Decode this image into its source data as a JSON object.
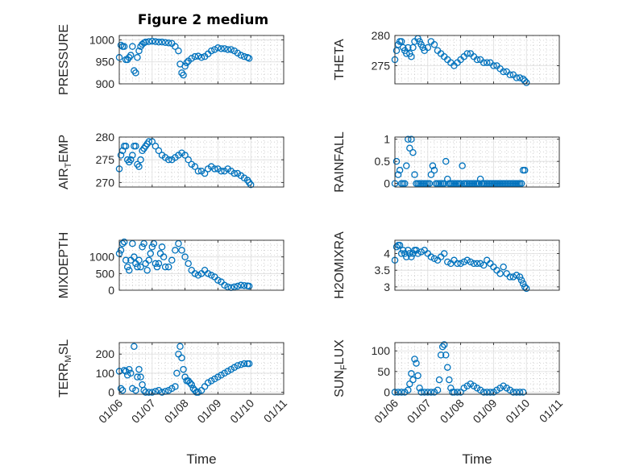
{
  "title": "Figure 2 medium",
  "marker_color": "#0072BD",
  "chart_data": [
    {
      "type": "scatter",
      "ylabel": {
        "main": "PRESSURE",
        "sub": "",
        "rest": ""
      },
      "ylim": [
        900,
        1010
      ],
      "yticks": [
        900,
        950,
        1000
      ],
      "xlim": [
        0,
        5
      ],
      "xticks": [
        "01/06",
        "01/07",
        "01/08",
        "01/09",
        "01/10",
        "01/11"
      ],
      "xlabel": "",
      "grid": true,
      "x": [
        0.0,
        0.05,
        0.1,
        0.15,
        0.2,
        0.25,
        0.3,
        0.35,
        0.4,
        0.45,
        0.5,
        0.55,
        0.6,
        0.65,
        0.7,
        0.75,
        0.8,
        0.9,
        1.0,
        1.1,
        1.2,
        1.3,
        1.4,
        1.5,
        1.6,
        1.7,
        1.8,
        1.85,
        1.9,
        1.95,
        2.0,
        2.05,
        2.1,
        2.2,
        2.3,
        2.4,
        2.5,
        2.6,
        2.7,
        2.8,
        2.9,
        3.0,
        3.1,
        3.2,
        3.3,
        3.4,
        3.5,
        3.6,
        3.7,
        3.8,
        3.9,
        3.95
      ],
      "y": [
        960,
        988,
        985,
        985,
        955,
        955,
        960,
        965,
        985,
        930,
        925,
        960,
        975,
        985,
        990,
        993,
        995,
        996,
        997,
        996,
        995,
        995,
        994,
        993,
        992,
        985,
        975,
        945,
        925,
        920,
        940,
        948,
        952,
        958,
        962,
        963,
        960,
        962,
        968,
        975,
        978,
        982,
        980,
        980,
        978,
        978,
        975,
        970,
        965,
        962,
        960,
        958
      ]
    },
    {
      "type": "scatter",
      "ylabel": {
        "main": "THETA",
        "sub": "",
        "rest": ""
      },
      "ylim": [
        272,
        280
      ],
      "yticks": [
        275,
        280
      ],
      "xlim": [
        0,
        5
      ],
      "xticks": [
        "01/06",
        "01/07",
        "01/08",
        "01/09",
        "01/10",
        "01/11"
      ],
      "xlabel": "",
      "grid": true,
      "x": [
        0.0,
        0.05,
        0.1,
        0.15,
        0.2,
        0.25,
        0.3,
        0.35,
        0.4,
        0.45,
        0.5,
        0.55,
        0.6,
        0.7,
        0.75,
        0.8,
        0.85,
        0.9,
        1.0,
        1.1,
        1.2,
        1.3,
        1.4,
        1.5,
        1.6,
        1.7,
        1.8,
        1.9,
        2.0,
        2.1,
        2.2,
        2.3,
        2.4,
        2.5,
        2.6,
        2.7,
        2.8,
        2.9,
        3.0,
        3.1,
        3.2,
        3.3,
        3.4,
        3.5,
        3.6,
        3.7,
        3.8,
        3.9,
        3.95,
        4.0
      ],
      "y": [
        276,
        277.5,
        278.5,
        279,
        279,
        278,
        277.5,
        277,
        278,
        277,
        276.5,
        278,
        279,
        279.5,
        279,
        278.5,
        278,
        277.5,
        278,
        279,
        278.5,
        277.5,
        277,
        276.5,
        276,
        275.5,
        275,
        275.5,
        276,
        276.5,
        277,
        277,
        276.5,
        276,
        276,
        275.5,
        275.5,
        275.5,
        275,
        275,
        274.5,
        274,
        274,
        273.5,
        273.5,
        273,
        273,
        272.8,
        272.5,
        272.2
      ]
    },
    {
      "type": "scatter",
      "ylabel": {
        "main": "AIR",
        "sub": "T",
        "rest": "EMP"
      },
      "ylim": [
        269,
        280
      ],
      "yticks": [
        270,
        275,
        280
      ],
      "xlim": [
        0,
        5
      ],
      "xticks": [
        "01/06",
        "01/07",
        "01/08",
        "01/09",
        "01/10",
        "01/11"
      ],
      "xlabel": "",
      "grid": true,
      "x": [
        0.0,
        0.05,
        0.1,
        0.15,
        0.2,
        0.25,
        0.3,
        0.35,
        0.4,
        0.45,
        0.5,
        0.55,
        0.6,
        0.65,
        0.7,
        0.75,
        0.8,
        0.85,
        0.9,
        1.0,
        1.1,
        1.2,
        1.3,
        1.4,
        1.5,
        1.6,
        1.7,
        1.8,
        1.9,
        2.0,
        2.1,
        2.2,
        2.3,
        2.4,
        2.5,
        2.6,
        2.7,
        2.8,
        2.9,
        3.0,
        3.1,
        3.2,
        3.3,
        3.4,
        3.5,
        3.6,
        3.7,
        3.8,
        3.9,
        3.95,
        4.0
      ],
      "y": [
        273,
        276,
        277,
        278,
        278,
        275,
        274.5,
        275,
        276,
        278,
        278,
        274,
        273.5,
        275,
        277,
        277.5,
        278,
        278.5,
        279,
        279,
        278,
        277,
        276,
        275.5,
        275,
        275,
        275.5,
        276,
        276.5,
        276,
        275,
        274,
        273.5,
        272.5,
        272.5,
        272,
        273,
        273.5,
        273,
        273,
        272.5,
        272.5,
        273,
        272.5,
        272,
        272,
        271.5,
        271,
        270.5,
        270,
        269.5
      ]
    },
    {
      "type": "scatter",
      "ylabel": {
        "main": "RAINFALL",
        "sub": "",
        "rest": ""
      },
      "ylim": [
        -0.08,
        1.05
      ],
      "yticks": [
        0,
        0.5,
        1
      ],
      "xlim": [
        0,
        5
      ],
      "xticks": [
        "01/06",
        "01/07",
        "01/08",
        "01/09",
        "01/10",
        "01/11"
      ],
      "xlabel": "",
      "grid": true,
      "x": [
        0.0,
        0.05,
        0.1,
        0.15,
        0.2,
        0.25,
        0.3,
        0.35,
        0.4,
        0.45,
        0.5,
        0.55,
        0.6,
        0.65,
        0.7,
        0.75,
        0.8,
        0.85,
        0.9,
        0.95,
        1.0,
        1.05,
        1.1,
        1.15,
        1.2,
        1.25,
        1.3,
        1.35,
        1.4,
        1.45,
        1.5,
        1.55,
        1.6,
        1.65,
        1.7,
        1.75,
        1.8,
        1.85,
        1.9,
        1.95,
        2.0,
        2.05,
        2.1,
        2.15,
        2.2,
        2.25,
        2.3,
        2.35,
        2.4,
        2.45,
        2.5,
        2.55,
        2.6,
        2.65,
        2.7,
        2.75,
        2.8,
        2.85,
        2.9,
        2.95,
        3.0,
        3.05,
        3.1,
        3.15,
        3.2,
        3.25,
        3.3,
        3.35,
        3.4,
        3.45,
        3.5,
        3.55,
        3.6,
        3.65,
        3.7,
        3.75,
        3.8,
        3.85,
        3.9,
        3.95
      ],
      "y": [
        0,
        0.5,
        0.2,
        0.3,
        0,
        0,
        0,
        0.4,
        1.0,
        0.8,
        1.0,
        0.7,
        0.2,
        0,
        0,
        0,
        0,
        0,
        0,
        0,
        0,
        0,
        0.2,
        0.4,
        0.3,
        0,
        0,
        0,
        0,
        0,
        0,
        0.5,
        0.1,
        0,
        0,
        0,
        0,
        0,
        0,
        0,
        0,
        0.4,
        0,
        0,
        0,
        0,
        0,
        0,
        0,
        0,
        0,
        0,
        0.1,
        0,
        0,
        0,
        0,
        0,
        0,
        0,
        0,
        0,
        0,
        0,
        0,
        0,
        0,
        0,
        0,
        0,
        0,
        0,
        0,
        0,
        0,
        0,
        0,
        0,
        0.3,
        0.3
      ]
    },
    {
      "type": "scatter",
      "ylabel": {
        "main": "MIXDEPTH",
        "sub": "",
        "rest": ""
      },
      "ylim": [
        0,
        1500
      ],
      "yticks": [
        0,
        500,
        1000
      ],
      "xlim": [
        0,
        5
      ],
      "xticks": [
        "01/06",
        "01/07",
        "01/08",
        "01/09",
        "01/10",
        "01/11"
      ],
      "xlabel": "",
      "grid": true,
      "x": [
        0.0,
        0.05,
        0.1,
        0.15,
        0.2,
        0.25,
        0.3,
        0.35,
        0.4,
        0.45,
        0.5,
        0.55,
        0.6,
        0.65,
        0.7,
        0.75,
        0.8,
        0.85,
        0.9,
        0.95,
        1.0,
        1.05,
        1.1,
        1.15,
        1.2,
        1.25,
        1.3,
        1.35,
        1.4,
        1.5,
        1.6,
        1.7,
        1.8,
        1.9,
        2.0,
        2.1,
        2.2,
        2.3,
        2.4,
        2.5,
        2.6,
        2.7,
        2.8,
        2.9,
        3.0,
        3.1,
        3.2,
        3.3,
        3.4,
        3.5,
        3.6,
        3.7,
        3.8,
        3.9,
        3.95
      ],
      "y": [
        1100,
        1200,
        1400,
        1450,
        900,
        700,
        600,
        900,
        1400,
        1000,
        800,
        700,
        900,
        700,
        1300,
        1400,
        800,
        600,
        900,
        1100,
        1300,
        1400,
        800,
        700,
        800,
        1100,
        1300,
        1000,
        700,
        700,
        900,
        1200,
        1400,
        1200,
        1000,
        800,
        600,
        500,
        450,
        500,
        600,
        500,
        450,
        400,
        300,
        250,
        150,
        100,
        80,
        100,
        120,
        150,
        140,
        130,
        120
      ]
    },
    {
      "type": "scatter",
      "ylabel": {
        "main": "H2OMIXRA",
        "sub": "",
        "rest": ""
      },
      "ylim": [
        2.9,
        4.4
      ],
      "yticks": [
        3,
        3.5,
        4
      ],
      "xlim": [
        0,
        5
      ],
      "xticks": [
        "01/06",
        "01/07",
        "01/08",
        "01/09",
        "01/10",
        "01/11"
      ],
      "xlabel": "",
      "grid": true,
      "x": [
        0.0,
        0.05,
        0.1,
        0.15,
        0.2,
        0.25,
        0.3,
        0.35,
        0.4,
        0.45,
        0.5,
        0.55,
        0.6,
        0.65,
        0.7,
        0.8,
        0.9,
        1.0,
        1.1,
        1.2,
        1.3,
        1.4,
        1.5,
        1.6,
        1.7,
        1.8,
        1.9,
        2.0,
        2.1,
        2.2,
        2.3,
        2.4,
        2.5,
        2.6,
        2.7,
        2.8,
        2.9,
        3.0,
        3.1,
        3.2,
        3.3,
        3.4,
        3.5,
        3.6,
        3.7,
        3.8,
        3.85,
        3.9,
        3.95,
        4.0
      ],
      "y": [
        3.8,
        4.2,
        4.25,
        4.25,
        4.0,
        4.1,
        4.0,
        3.9,
        4.1,
        4.0,
        3.9,
        4.0,
        4.1,
        4.1,
        4.0,
        4.05,
        4.1,
        4.0,
        3.9,
        3.85,
        3.8,
        3.9,
        4.0,
        3.75,
        3.7,
        3.8,
        3.7,
        3.7,
        3.75,
        3.8,
        3.75,
        3.7,
        3.7,
        3.7,
        3.65,
        3.8,
        3.7,
        3.6,
        3.5,
        3.4,
        3.6,
        3.4,
        3.3,
        3.3,
        3.35,
        3.3,
        3.2,
        3.1,
        3.0,
        2.95
      ]
    },
    {
      "type": "scatter",
      "ylabel": {
        "main": "TERR",
        "sub": "M",
        "rest": "SL"
      },
      "ylim": [
        -10,
        260
      ],
      "yticks": [
        0,
        100,
        200
      ],
      "xlim": [
        0,
        5
      ],
      "xticks": [
        "01/06",
        "01/07",
        "01/08",
        "01/09",
        "01/10",
        "01/11"
      ],
      "xlabel": "Time",
      "grid": true,
      "x": [
        0.0,
        0.05,
        0.1,
        0.15,
        0.2,
        0.25,
        0.3,
        0.35,
        0.4,
        0.45,
        0.5,
        0.55,
        0.6,
        0.65,
        0.7,
        0.75,
        0.8,
        0.9,
        1.0,
        1.1,
        1.2,
        1.3,
        1.4,
        1.5,
        1.6,
        1.7,
        1.75,
        1.8,
        1.85,
        1.9,
        1.95,
        2.0,
        2.05,
        2.1,
        2.15,
        2.2,
        2.25,
        2.3,
        2.35,
        2.4,
        2.5,
        2.6,
        2.7,
        2.8,
        2.9,
        3.0,
        3.1,
        3.2,
        3.3,
        3.4,
        3.5,
        3.6,
        3.7,
        3.8,
        3.9,
        3.95
      ],
      "y": [
        110,
        20,
        10,
        115,
        110,
        90,
        120,
        100,
        20,
        240,
        10,
        80,
        120,
        80,
        40,
        10,
        0,
        0,
        0,
        5,
        10,
        0,
        5,
        10,
        20,
        30,
        100,
        200,
        240,
        180,
        120,
        80,
        60,
        60,
        50,
        40,
        20,
        10,
        0,
        0,
        10,
        30,
        50,
        60,
        70,
        80,
        90,
        100,
        110,
        120,
        130,
        140,
        145,
        150,
        150,
        150
      ]
    },
    {
      "type": "scatter",
      "ylabel": {
        "main": "SUN",
        "sub": "F",
        "rest": "LUX"
      },
      "ylim": [
        -5,
        120
      ],
      "yticks": [
        0,
        50,
        100
      ],
      "xlim": [
        0,
        5
      ],
      "xticks": [
        "01/06",
        "01/07",
        "01/08",
        "01/09",
        "01/10",
        "01/11"
      ],
      "xlabel": "Time",
      "grid": true,
      "x": [
        0.0,
        0.1,
        0.2,
        0.3,
        0.4,
        0.45,
        0.5,
        0.55,
        0.6,
        0.65,
        0.7,
        0.75,
        0.8,
        0.9,
        1.0,
        1.1,
        1.2,
        1.3,
        1.35,
        1.4,
        1.45,
        1.5,
        1.55,
        1.6,
        1.65,
        1.7,
        1.75,
        1.8,
        1.9,
        2.0,
        2.1,
        2.2,
        2.3,
        2.4,
        2.5,
        2.6,
        2.7,
        2.8,
        2.9,
        3.0,
        3.1,
        3.2,
        3.3,
        3.4,
        3.5,
        3.6,
        3.7,
        3.8,
        3.9
      ],
      "y": [
        0,
        0,
        0,
        0,
        5,
        20,
        45,
        30,
        80,
        70,
        40,
        10,
        0,
        0,
        0,
        0,
        0,
        5,
        30,
        90,
        110,
        115,
        90,
        60,
        30,
        10,
        0,
        0,
        0,
        0,
        10,
        15,
        20,
        15,
        10,
        5,
        0,
        0,
        0,
        0,
        5,
        10,
        15,
        10,
        5,
        0,
        0,
        0,
        0
      ]
    }
  ]
}
